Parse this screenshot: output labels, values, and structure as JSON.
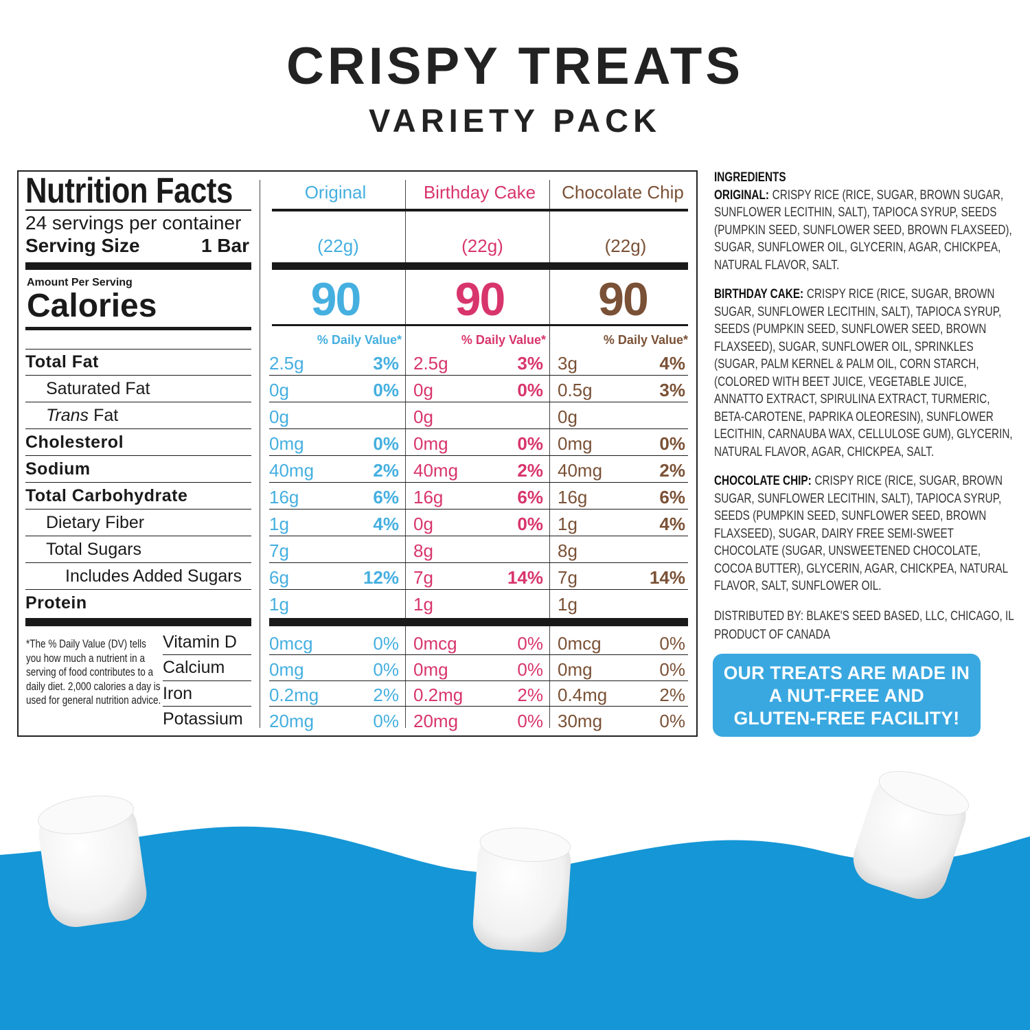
{
  "header": {
    "title": "CRISPY TREATS",
    "subtitle": "VARIETY PACK"
  },
  "nutrition": {
    "title": "Nutrition Facts",
    "servings": "24 servings per container",
    "serving_size_label": "Serving Size",
    "serving_size": "1 Bar",
    "amount_per_serving": "Amount Per Serving",
    "calories_label": "Calories",
    "flavors": [
      {
        "name": "Original",
        "color": "#45afe0",
        "serving": "(22g)",
        "calories": 90,
        "dv_header": "% Daily Value*"
      },
      {
        "name": "Birthday Cake",
        "color": "#d8356c",
        "serving": "(22g)",
        "calories": 90,
        "dv_header": "% Daily Value*"
      },
      {
        "name": "Chocolate Chip",
        "color": "#7a5136",
        "serving": "(22g)",
        "calories": 90,
        "dv_header": "% Daily Value*"
      }
    ],
    "rows": [
      {
        "label": "Total Fat",
        "style": "bold",
        "cells": [
          {
            "amount": "2.5g",
            "dv": "3%"
          },
          {
            "amount": "2.5g",
            "dv": "3%"
          },
          {
            "amount": "3g",
            "dv": "4%"
          }
        ]
      },
      {
        "label": "Saturated Fat",
        "style": "indent",
        "cells": [
          {
            "amount": "0g",
            "dv": "0%"
          },
          {
            "amount": "0g",
            "dv": "0%"
          },
          {
            "amount": "0.5g",
            "dv": "3%"
          }
        ]
      },
      {
        "italic": "Trans",
        "label": "Fat",
        "style": "indent",
        "cells": [
          {
            "amount": "0g",
            "dv": null
          },
          {
            "amount": "0g",
            "dv": null
          },
          {
            "amount": "0g",
            "dv": null
          }
        ]
      },
      {
        "label": "Cholesterol",
        "style": "bold",
        "cells": [
          {
            "amount": "0mg",
            "dv": "0%"
          },
          {
            "amount": "0mg",
            "dv": "0%"
          },
          {
            "amount": "0mg",
            "dv": "0%"
          }
        ]
      },
      {
        "label": "Sodium",
        "style": "bold",
        "cells": [
          {
            "amount": "40mg",
            "dv": "2%"
          },
          {
            "amount": "40mg",
            "dv": "2%"
          },
          {
            "amount": "40mg",
            "dv": "2%"
          }
        ]
      },
      {
        "label": "Total Carbohydrate",
        "style": "bold",
        "cells": [
          {
            "amount": "16g",
            "dv": "6%"
          },
          {
            "amount": "16g",
            "dv": "6%"
          },
          {
            "amount": "16g",
            "dv": "6%"
          }
        ]
      },
      {
        "label": "Dietary Fiber",
        "style": "indent",
        "cells": [
          {
            "amount": "1g",
            "dv": "4%"
          },
          {
            "amount": "0g",
            "dv": "0%"
          },
          {
            "amount": "1g",
            "dv": "4%"
          }
        ]
      },
      {
        "label": "Total Sugars",
        "style": "indent",
        "cells": [
          {
            "amount": "7g",
            "dv": null
          },
          {
            "amount": "8g",
            "dv": null
          },
          {
            "amount": "8g",
            "dv": null
          }
        ]
      },
      {
        "label": "Includes Added Sugars",
        "style": "indent2",
        "cells": [
          {
            "amount": "6g",
            "dv": "12%"
          },
          {
            "amount": "7g",
            "dv": "14%"
          },
          {
            "amount": "7g",
            "dv": "14%"
          }
        ]
      },
      {
        "label": "Protein",
        "style": "bold",
        "cells": [
          {
            "amount": "1g",
            "dv": null
          },
          {
            "amount": "1g",
            "dv": null
          },
          {
            "amount": "1g",
            "dv": null
          }
        ]
      }
    ],
    "vitamins": [
      {
        "label": "Vitamin D",
        "cells": [
          {
            "amount": "0mcg",
            "dv": "0%"
          },
          {
            "amount": "0mcg",
            "dv": "0%"
          },
          {
            "amount": "0mcg",
            "dv": "0%"
          }
        ]
      },
      {
        "label": "Calcium",
        "cells": [
          {
            "amount": "0mg",
            "dv": "0%"
          },
          {
            "amount": "0mg",
            "dv": "0%"
          },
          {
            "amount": "0mg",
            "dv": "0%"
          }
        ]
      },
      {
        "label": "Iron",
        "cells": [
          {
            "amount": "0.2mg",
            "dv": "2%"
          },
          {
            "amount": "0.2mg",
            "dv": "2%"
          },
          {
            "amount": "0.4mg",
            "dv": "2%"
          }
        ]
      },
      {
        "label": "Potassium",
        "cells": [
          {
            "amount": "20mg",
            "dv": "0%"
          },
          {
            "amount": "20mg",
            "dv": "0%"
          },
          {
            "amount": "30mg",
            "dv": "0%"
          }
        ]
      }
    ],
    "footnote": "*The % Daily Value (DV) tells you how much a nutrient in a serving of food contributes to a daily diet. 2,000 calories a day is used for general nutrition advice."
  },
  "ingredients": {
    "heading": "INGREDIENTS",
    "paragraphs": [
      {
        "lead": "ORIGINAL:",
        "text": "CRISPY RICE (RICE, SUGAR, BROWN SUGAR, SUNFLOWER LECITHIN, SALT), TAPIOCA SYRUP, SEEDS (PUMPKIN SEED, SUNFLOWER SEED, BROWN FLAXSEED), SUGAR, SUNFLOWER OIL, GLYCERIN, AGAR, CHICKPEA, NATURAL FLAVOR, SALT."
      },
      {
        "lead": "BIRTHDAY CAKE:",
        "text": "CRISPY RICE (RICE, SUGAR, BROWN SUGAR, SUNFLOWER LECITHIN, SALT), TAPIOCA SYRUP, SEEDS (PUMPKIN SEED, SUNFLOWER SEED, BROWN FLAXSEED), SUGAR, SUNFLOWER OIL, SPRINKLES (SUGAR, PALM KERNEL & PALM OIL, CORN STARCH, (COLORED WITH BEET JUICE, VEGETABLE JUICE, ANNATTO EXTRACT, SPIRULINA EXTRACT, TURMERIC, BETA-CAROTENE, PAPRIKA OLEORESIN), SUNFLOWER LECITHIN, CARNAUBA WAX, CELLULOSE GUM), GLYCERIN, NATURAL FLAVOR, AGAR, CHICKPEA, SALT."
      },
      {
        "lead": "CHOCOLATE CHIP:",
        "text": "CRISPY RICE (RICE, SUGAR, BROWN SUGAR, SUNFLOWER LECITHIN, SALT), TAPIOCA SYRUP, SEEDS (PUMPKIN SEED, SUNFLOWER SEED, BROWN FLAXSEED), SUGAR, DAIRY FREE SEMI-SWEET CHOCOLATE (SUGAR, UNSWEETENED CHOCOLATE, COCOA BUTTER), GLYCERIN, AGAR, CHICKPEA, NATURAL FLAVOR, SALT, SUNFLOWER OIL."
      }
    ],
    "distributed": [
      "DISTRIBUTED BY: BLAKE'S SEED BASED, LLC, CHICAGO, IL",
      "PRODUCT OF CANADA"
    ]
  },
  "badge": {
    "lines": [
      "OUR TREATS ARE MADE IN",
      "A NUT-FREE AND",
      "GLUTEN-FREE FACILITY!"
    ]
  }
}
